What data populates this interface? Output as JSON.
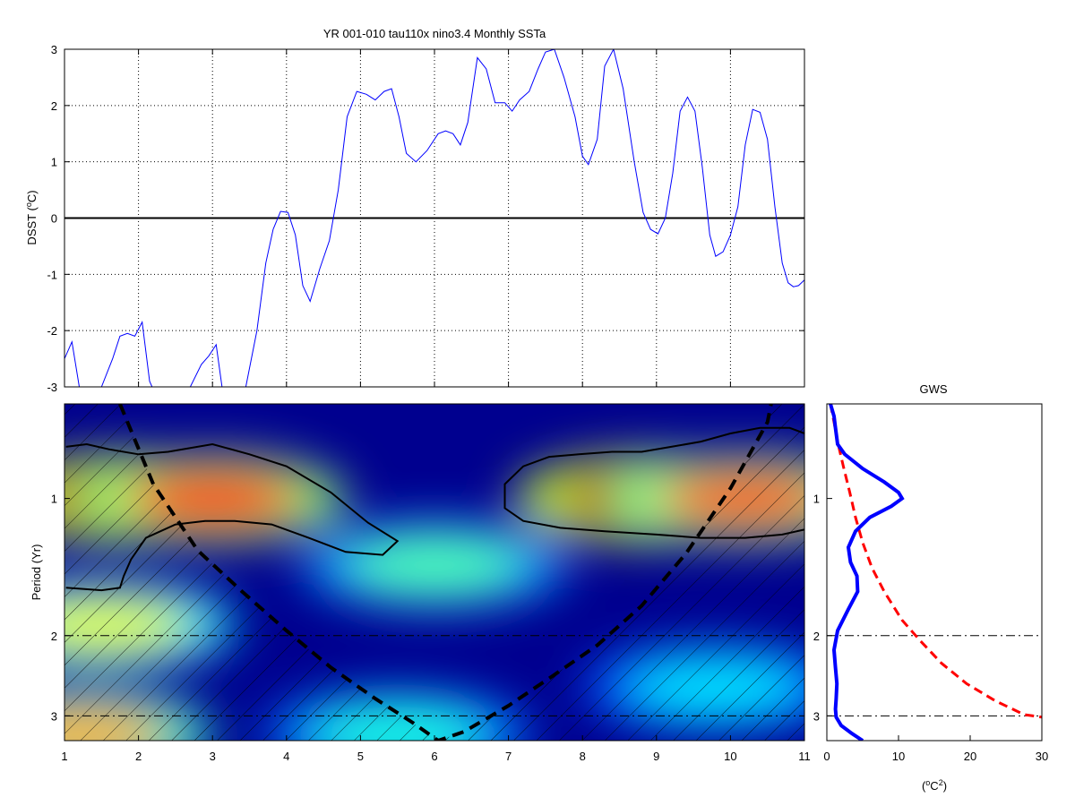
{
  "chart_data": [
    {
      "type": "line",
      "title": "YR 001-010 tau110x nino3.4 Monthly SSTa",
      "ylabel": "DSST (",
      "ylabel_unit": "o",
      "ylabel_end": "C)",
      "xlim": [
        1,
        11
      ],
      "ylim": [
        -3,
        3
      ],
      "xticks": [
        "1",
        "2",
        "3",
        "4",
        "5",
        "6",
        "7",
        "8",
        "9",
        "10",
        "11"
      ],
      "yticks": [
        "3",
        "2",
        "1",
        "0",
        "-1",
        "-2",
        "-3"
      ],
      "grid": true,
      "zero_line": true,
      "series": [
        {
          "color": "#0000ff",
          "x": [
            1.0,
            1.1,
            1.2,
            1.35,
            1.5,
            1.65,
            1.75,
            1.85,
            1.95,
            2.05,
            2.15,
            2.25,
            2.4,
            2.55,
            2.7,
            2.85,
            2.95,
            3.05,
            3.15,
            3.3,
            3.45,
            3.6,
            3.72,
            3.82,
            3.92,
            4.02,
            4.12,
            4.22,
            4.32,
            4.45,
            4.58,
            4.7,
            4.82,
            4.95,
            5.08,
            5.2,
            5.32,
            5.42,
            5.52,
            5.62,
            5.75,
            5.9,
            6.05,
            6.15,
            6.25,
            6.35,
            6.45,
            6.58,
            6.7,
            6.82,
            6.95,
            7.05,
            7.15,
            7.28,
            7.4,
            7.5,
            7.62,
            7.75,
            7.9,
            8.0,
            8.08,
            8.2,
            8.3,
            8.42,
            8.55,
            8.7,
            8.82,
            8.92,
            9.02,
            9.12,
            9.22,
            9.32,
            9.42,
            9.52,
            9.62,
            9.72,
            9.8,
            9.9,
            10.0,
            10.1,
            10.2,
            10.3,
            10.4,
            10.5,
            10.6,
            10.7,
            10.78,
            10.85,
            10.92,
            11.0
          ],
          "y": [
            -2.5,
            -2.2,
            -3.0,
            -3.2,
            -3.0,
            -2.5,
            -2.1,
            -2.05,
            -2.1,
            -1.85,
            -2.9,
            -3.2,
            -3.3,
            -3.2,
            -3.0,
            -2.6,
            -2.45,
            -2.25,
            -3.2,
            -3.4,
            -3.0,
            -2.0,
            -0.8,
            -0.2,
            0.12,
            0.1,
            -0.3,
            -1.2,
            -1.48,
            -0.9,
            -0.4,
            0.5,
            1.8,
            2.25,
            2.2,
            2.1,
            2.25,
            2.3,
            1.8,
            1.15,
            1.0,
            1.2,
            1.5,
            1.55,
            1.5,
            1.3,
            1.7,
            2.85,
            2.65,
            2.05,
            2.05,
            1.9,
            2.1,
            2.25,
            2.65,
            2.95,
            3.0,
            2.5,
            1.8,
            1.1,
            0.95,
            1.4,
            2.7,
            3.0,
            2.3,
            1.0,
            0.1,
            -0.2,
            -0.28,
            0.0,
            0.8,
            1.9,
            2.15,
            1.9,
            0.9,
            -0.3,
            -0.68,
            -0.6,
            -0.3,
            0.2,
            1.3,
            1.93,
            1.88,
            1.4,
            0.2,
            -0.8,
            -1.15,
            -1.22,
            -1.2,
            -1.1
          ]
        }
      ]
    },
    {
      "type": "heatmap",
      "ylabel": "Period (Yr)",
      "xlim": [
        1,
        11
      ],
      "ylim": [
        0.62,
        3.4
      ],
      "xticks": [
        "1",
        "2",
        "3",
        "4",
        "5",
        "6",
        "7",
        "8",
        "9",
        "10",
        "11"
      ],
      "yticks": [
        "1",
        "2",
        "3"
      ],
      "reference_periods": [
        2,
        3
      ],
      "colormap": "jet",
      "cone_of_influence": {
        "style": "dashed",
        "x": [
          1.75,
          2.2,
          2.8,
          3.4,
          4.0,
          4.6,
          5.2,
          5.7,
          6.05,
          6.4,
          7.0,
          7.6,
          8.2,
          8.8,
          9.4,
          10.0,
          10.5,
          10.55
        ],
        "period": [
          0.62,
          0.93,
          1.3,
          1.6,
          1.95,
          2.35,
          2.75,
          3.1,
          3.4,
          3.25,
          2.85,
          2.45,
          2.1,
          1.72,
          1.32,
          0.95,
          0.68,
          0.62
        ]
      },
      "significance_contours": [
        {
          "x": [
            1.02,
            1.3,
            1.6,
            2.0,
            2.4,
            3.0,
            3.5,
            4.0,
            4.6,
            5.1,
            5.5,
            5.3,
            4.8,
            4.3,
            3.8,
            3.3,
            2.9,
            2.5,
            2.1,
            1.9,
            1.8,
            1.75,
            1.5,
            1.02
          ],
          "period": [
            0.77,
            0.76,
            0.78,
            0.8,
            0.79,
            0.76,
            0.8,
            0.85,
            0.97,
            1.13,
            1.24,
            1.33,
            1.31,
            1.22,
            1.14,
            1.12,
            1.12,
            1.14,
            1.22,
            1.36,
            1.48,
            1.57,
            1.59,
            1.57
          ]
        },
        {
          "x": [
            11.0,
            10.8,
            10.4,
            10.0,
            9.6,
            9.2,
            8.8,
            8.4,
            7.95,
            7.55,
            7.2,
            6.95,
            6.95,
            7.2,
            7.7,
            8.3,
            9.0,
            9.6,
            10.2,
            10.7,
            11.0
          ],
          "period": [
            0.72,
            0.7,
            0.7,
            0.72,
            0.75,
            0.77,
            0.79,
            0.79,
            0.8,
            0.81,
            0.85,
            0.93,
            1.05,
            1.12,
            1.16,
            1.18,
            1.2,
            1.22,
            1.22,
            1.2,
            1.17
          ]
        }
      ],
      "power_blobs": [
        {
          "x": 1.8,
          "period": 1.0,
          "level": 0.95
        },
        {
          "x": 3.0,
          "period": 1.0,
          "level": 0.85
        },
        {
          "x": 8.9,
          "period": 1.0,
          "level": 0.95
        },
        {
          "x": 10.2,
          "period": 1.0,
          "level": 0.8
        },
        {
          "x": 6.0,
          "period": 1.4,
          "level": 0.45
        },
        {
          "x": 1.5,
          "period": 1.9,
          "level": 0.6
        },
        {
          "x": 1.2,
          "period": 3.3,
          "level": 0.7
        },
        {
          "x": 5.5,
          "period": 3.3,
          "level": 0.4
        },
        {
          "x": 9.8,
          "period": 2.6,
          "level": 0.35
        }
      ]
    },
    {
      "type": "line",
      "title": "GWS",
      "xlabel": "(",
      "xlabel_unit": "o",
      "xlabel_mid": "C",
      "xlabel_sup": "2",
      "xlabel_end": ")",
      "xlim": [
        0,
        30
      ],
      "ylim": [
        0.62,
        3.4
      ],
      "xticks": [
        "0",
        "10",
        "20",
        "30"
      ],
      "yticks": [
        "1",
        "2",
        "3"
      ],
      "reference_periods": [
        2,
        3
      ],
      "series": [
        {
          "style": "solid",
          "color": "#0000ff",
          "power": [
            0.5,
            1.0,
            1.2,
            1.5,
            2.5,
            5.0,
            8.0,
            10.0,
            10.5,
            9.0,
            6.0,
            4.0,
            3.0,
            3.3,
            4.2,
            4.3,
            3.0,
            1.5,
            1.0,
            1.2,
            1.4,
            1.3,
            1.2,
            1.3,
            2.0,
            3.5,
            5.0
          ],
          "period": [
            0.62,
            0.66,
            0.7,
            0.76,
            0.8,
            0.86,
            0.92,
            0.97,
            1.0,
            1.04,
            1.1,
            1.18,
            1.28,
            1.38,
            1.48,
            1.6,
            1.75,
            1.95,
            2.15,
            2.35,
            2.55,
            2.75,
            2.9,
            3.02,
            3.15,
            3.28,
            3.4
          ]
        },
        {
          "style": "dashed",
          "color": "#ff0000",
          "power": [
            0.5,
            1.0,
            1.5,
            2.3,
            3.2,
            4.0,
            5.0,
            6.3,
            8.0,
            10.5,
            13.0,
            16.0,
            19.5,
            23.5,
            27.5,
            30.0
          ],
          "period": [
            0.62,
            0.68,
            0.75,
            0.85,
            0.97,
            1.1,
            1.25,
            1.42,
            1.6,
            1.85,
            2.05,
            2.3,
            2.55,
            2.78,
            2.98,
            3.02
          ]
        }
      ]
    }
  ]
}
